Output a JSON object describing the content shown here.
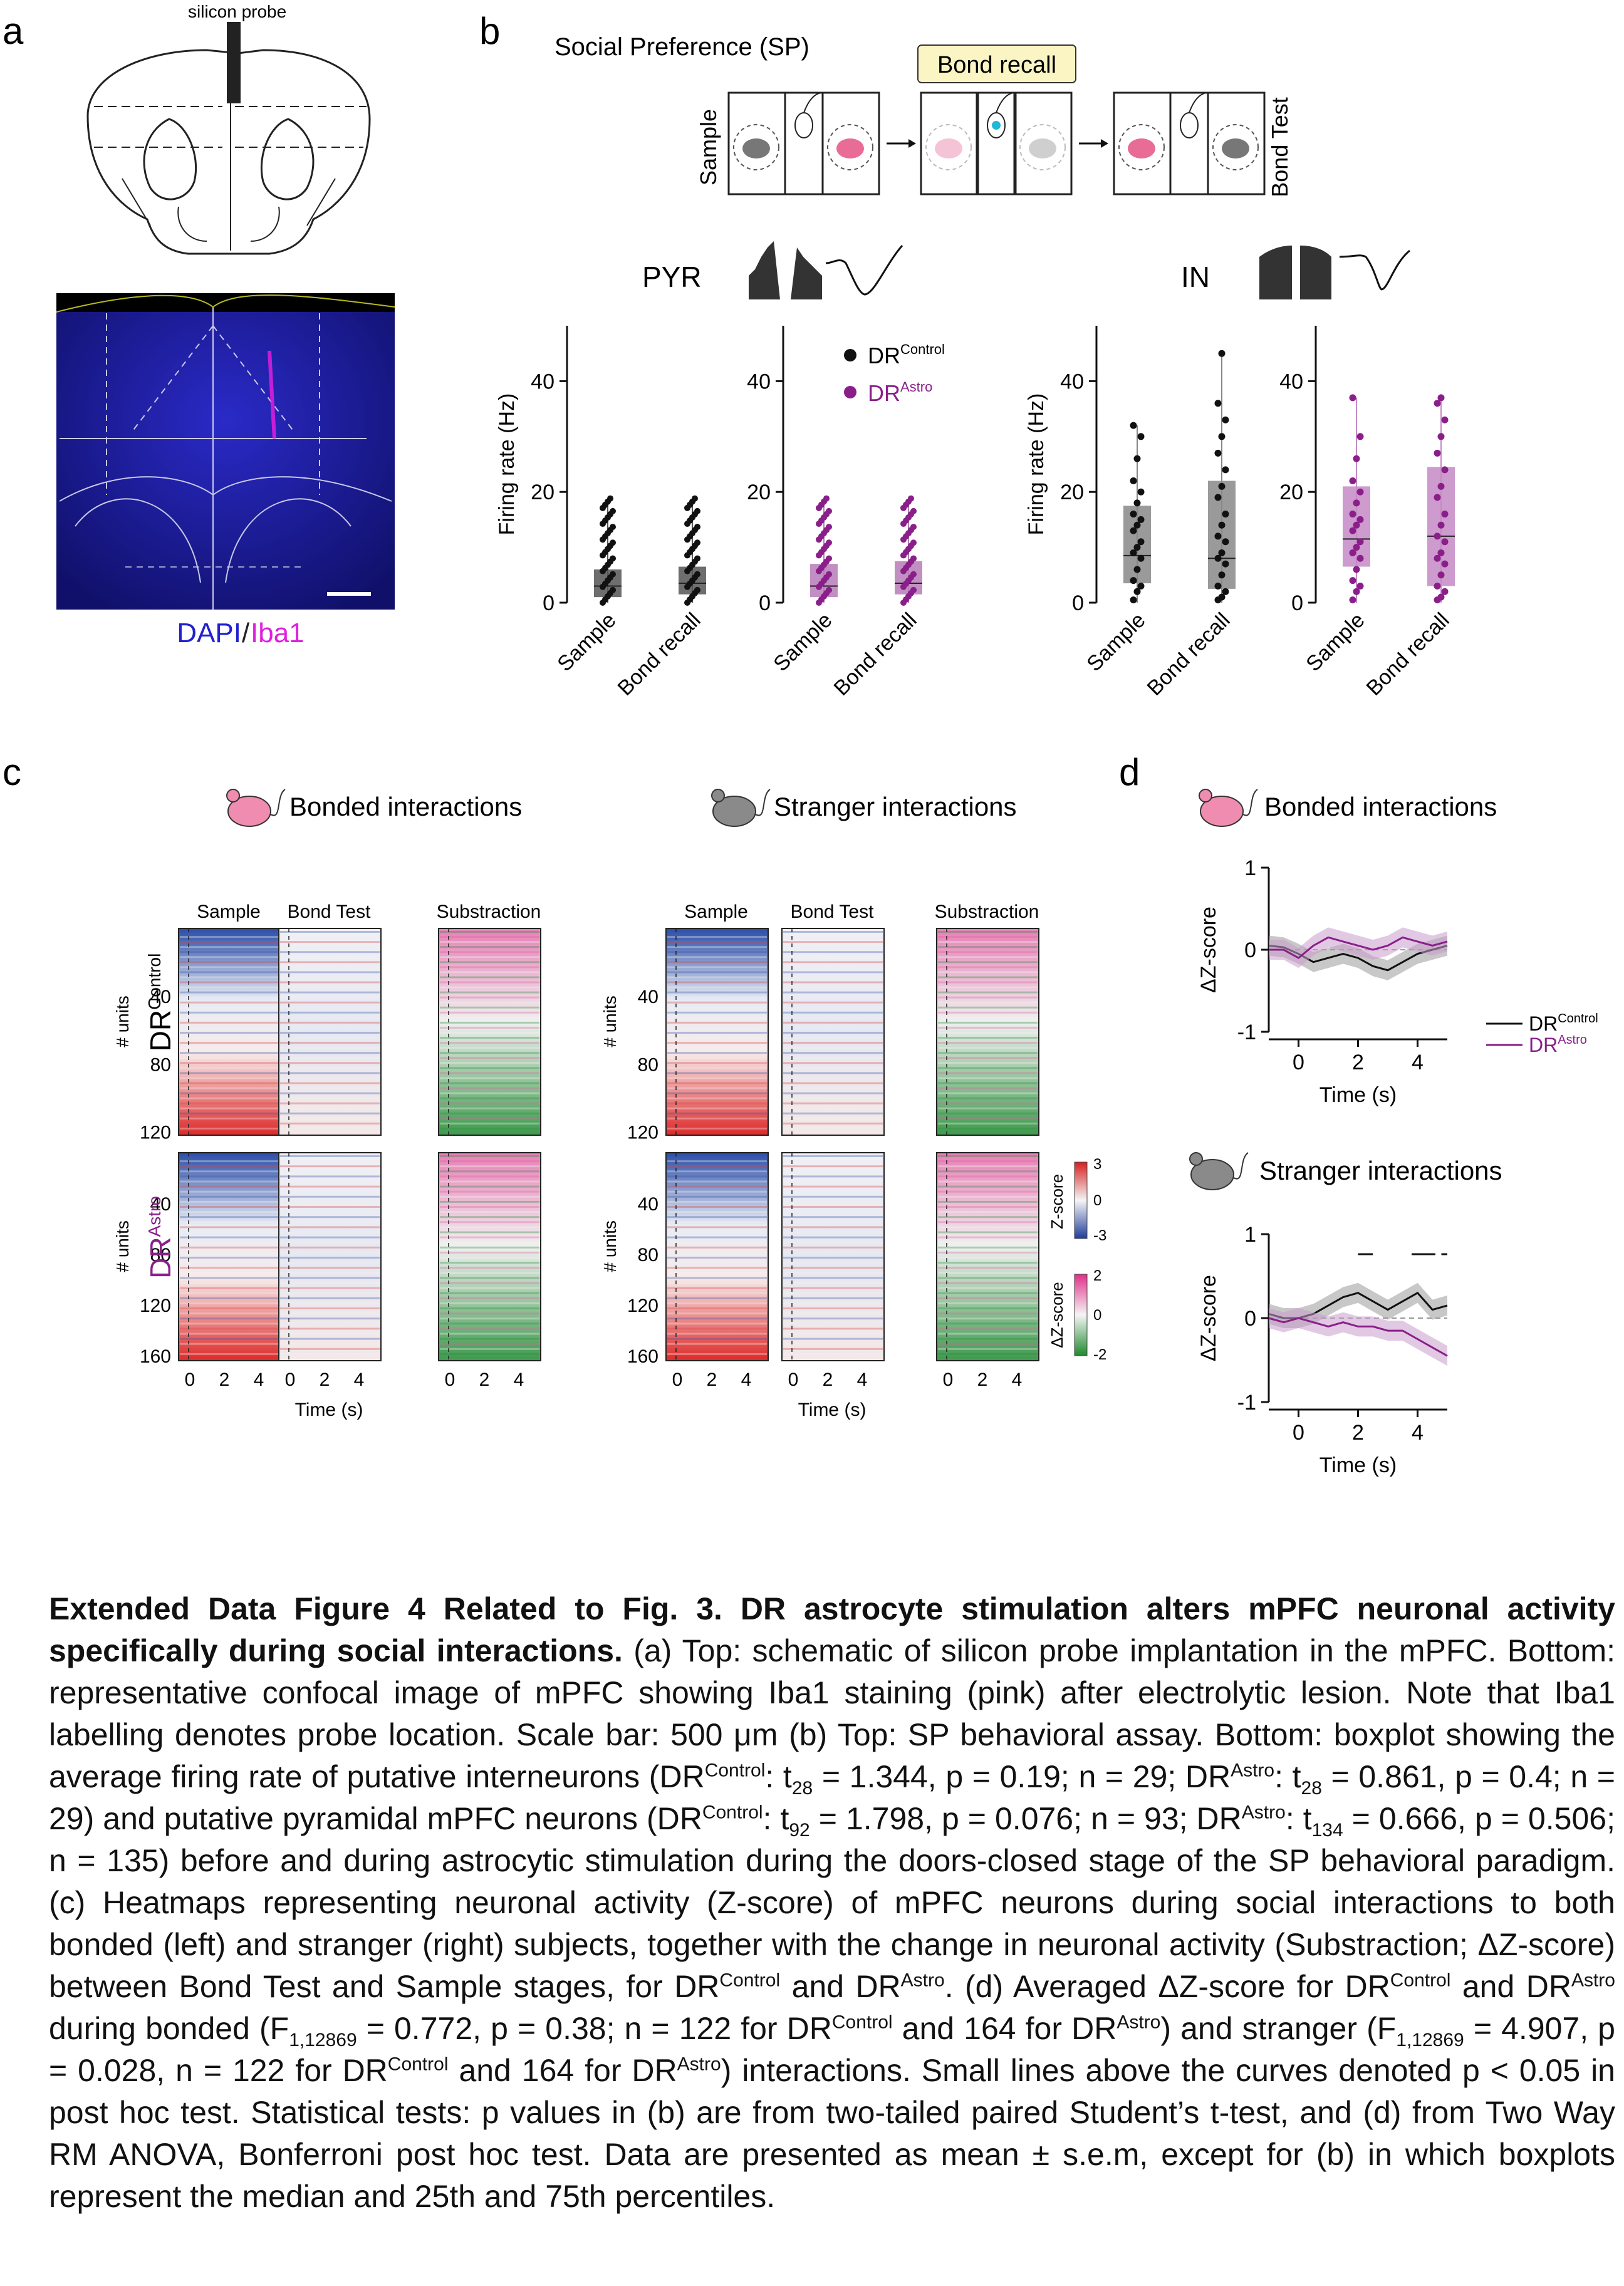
{
  "panels": {
    "a": {
      "letter": "a",
      "probe_label": "silicon probe",
      "stain_dapi": "DAPI",
      "stain_sep": "/",
      "stain_iba1": "Iba1"
    },
    "b": {
      "letter": "b",
      "schematic": {
        "title": "Social Preference (SP)",
        "badge": "Bond recall",
        "left_stage": "Sample",
        "right_stage": "Bond Test"
      },
      "pyr_label": "PYR",
      "in_label": "IN",
      "ylabel": "Firing rate (Hz)",
      "yticks": [
        "0",
        "20",
        "40"
      ],
      "xticks": [
        "Sample",
        "Bond recall"
      ],
      "legend": [
        {
          "base": "DR",
          "sup": "Control",
          "color": "#111111"
        },
        {
          "base": "DR",
          "sup": "Astro",
          "color": "#8a1f8a"
        }
      ]
    },
    "c": {
      "letter": "c",
      "bonded_title": "Bonded interactions",
      "stranger_title": "Stranger interactions",
      "col_titles": [
        "Sample",
        "Bond Test",
        "Substraction"
      ],
      "row_control": {
        "base": "DR",
        "sup": "Control"
      },
      "row_astro": {
        "base": "DR",
        "sup": "Astro"
      },
      "units_label": "# units",
      "control_yticks": [
        "40",
        "80",
        "120"
      ],
      "astro_yticks": [
        "40",
        "80",
        "120",
        "160"
      ],
      "xticks": [
        "0",
        "2",
        "4"
      ],
      "xlabel": "Time (s)",
      "zscale": {
        "label": "Z-score",
        "ticks": [
          "3",
          "0",
          "-3"
        ]
      },
      "dzscale": {
        "label": "ΔZ-score",
        "ticks": [
          "2",
          "0",
          "-2"
        ]
      }
    },
    "d": {
      "letter": "d",
      "bonded_title": "Bonded interactions",
      "stranger_title": "Stranger interactions",
      "ylabel": "ΔZ-score",
      "yticks": [
        "1",
        "0",
        "-1"
      ],
      "xticks": [
        "0",
        "2",
        "4"
      ],
      "xlabel": "Time (s)",
      "legend": [
        {
          "base": "DR",
          "sup": "Control",
          "color": "#111111"
        },
        {
          "base": "DR",
          "sup": "Astro",
          "color": "#8a1f8a"
        }
      ]
    }
  },
  "chart_data": [
    {
      "type": "box",
      "panel": "b-PYR-Control",
      "categories": [
        "Sample",
        "Bond recall"
      ],
      "ylabel": "Firing rate (Hz)",
      "ylim": [
        0,
        50
      ],
      "boxes": [
        {
          "q1": 1.0,
          "median": 3.0,
          "q3": 6.0,
          "min": 0,
          "max": 18
        },
        {
          "q1": 1.5,
          "median": 3.5,
          "q3": 6.5,
          "min": 0,
          "max": 18
        }
      ],
      "color": "#555555"
    },
    {
      "type": "box",
      "panel": "b-PYR-Astro",
      "categories": [
        "Sample",
        "Bond recall"
      ],
      "ylim": [
        0,
        50
      ],
      "boxes": [
        {
          "q1": 1.0,
          "median": 3.0,
          "q3": 7.0,
          "min": 0,
          "max": 18
        },
        {
          "q1": 1.5,
          "median": 3.5,
          "q3": 7.5,
          "min": 0,
          "max": 18
        }
      ],
      "color": "#b77bb7"
    },
    {
      "type": "box",
      "panel": "b-IN-Control",
      "categories": [
        "Sample",
        "Bond recall"
      ],
      "ylabel": "Firing rate (Hz)",
      "ylim": [
        0,
        50
      ],
      "boxes": [
        {
          "q1": 3.5,
          "median": 8.5,
          "q3": 17.5,
          "min": 0,
          "max": 32
        },
        {
          "q1": 2.5,
          "median": 8.0,
          "q3": 22.0,
          "min": 0,
          "max": 45
        }
      ],
      "color": "#888888"
    },
    {
      "type": "box",
      "panel": "b-IN-Astro",
      "categories": [
        "Sample",
        "Bond recall"
      ],
      "ylim": [
        0,
        50
      ],
      "boxes": [
        {
          "q1": 6.5,
          "median": 11.5,
          "q3": 21.0,
          "min": 0,
          "max": 37
        },
        {
          "q1": 3.0,
          "median": 12.0,
          "q3": 24.5,
          "min": 0,
          "max": 37
        }
      ],
      "color": "#c48ac4"
    },
    {
      "type": "line",
      "panel": "d-bonded",
      "ylabel": "ΔZ-score",
      "xlabel": "Time (s)",
      "ylim": [
        -1,
        1
      ],
      "x": [
        -1,
        -0.5,
        0,
        0.5,
        1,
        1.5,
        2,
        2.5,
        3,
        3.5,
        4,
        4.5,
        5
      ],
      "series": [
        {
          "name": "DRControl",
          "color": "#111111",
          "values": [
            0.05,
            0.03,
            -0.05,
            -0.15,
            -0.1,
            -0.05,
            -0.1,
            -0.2,
            -0.25,
            -0.15,
            -0.05,
            0.0,
            0.05
          ]
        },
        {
          "name": "DRAstro",
          "color": "#8a1f8a",
          "values": [
            0.0,
            0.0,
            -0.1,
            0.05,
            0.15,
            0.1,
            0.05,
            0.0,
            0.05,
            0.15,
            0.1,
            0.05,
            0.1
          ]
        }
      ]
    },
    {
      "type": "line",
      "panel": "d-stranger",
      "ylabel": "ΔZ-score",
      "xlabel": "Time (s)",
      "ylim": [
        -1,
        1
      ],
      "x": [
        -1,
        -0.5,
        0,
        0.5,
        1,
        1.5,
        2,
        2.5,
        3,
        3.5,
        4,
        4.5,
        5
      ],
      "series": [
        {
          "name": "DRControl",
          "color": "#111111",
          "values": [
            0.05,
            0.0,
            0.0,
            0.05,
            0.15,
            0.25,
            0.3,
            0.2,
            0.1,
            0.2,
            0.3,
            0.1,
            0.15
          ]
        },
        {
          "name": "DRAstro",
          "color": "#8a1f8a",
          "values": [
            0.0,
            -0.05,
            0.0,
            -0.05,
            -0.1,
            -0.05,
            -0.1,
            -0.1,
            -0.15,
            -0.15,
            -0.25,
            -0.35,
            -0.45
          ]
        }
      ],
      "significance_bars_x": [
        [
          2,
          2.5
        ],
        [
          3.8,
          4.6
        ],
        [
          4.8,
          5.0
        ]
      ]
    }
  ],
  "caption": {
    "title": "Extended Data Figure 4 Related to Fig. 3. DR astrocyte stimulation alters mPFC neuronal activity specifically during social interactions.",
    "segments": [
      " (a) Top: schematic of silicon probe implantation in the mPFC. Bottom: representative confocal image of mPFC showing Iba1 staining (pink) after electrolytic lesion. Note that Iba1 labelling denotes probe location. Scale bar: 500 μm (b) Top: SP behavioral assay. Bottom: boxplot showing the average firing rate of putative interneurons (DR",
      "Control",
      ": t",
      "28",
      " = 1.344, p = 0.19; n = 29; DR",
      "Astro",
      ": t",
      "28",
      " = 0.861, p = 0.4; n = 29) and putative pyramidal mPFC neurons (DR",
      "Control",
      ": t",
      "92",
      " = 1.798, p = 0.076; n = 93; DR",
      "Astro",
      ": t",
      "134",
      " = 0.666, p = 0.506; n = 135) before and during astrocytic stimulation during the doors-closed stage of the SP behavioral paradigm. (c) Heatmaps representing neuronal activity (Z-score) of mPFC neurons during social interactions to both bonded (left) and stranger (right) subjects, together with the change in neuronal activity (Substraction; ΔZ-score) between Bond Test and Sample stages, for DR",
      "Control",
      " and DR",
      "Astro",
      ". (d) Averaged ΔZ-score for DR",
      "Control",
      " and DR",
      "Astro",
      " during bonded (F",
      "1,12869",
      " = 0.772,  p = 0.38; n = 122 for DR",
      "Control",
      " and 164 for DR",
      "Astro",
      ") and stranger (F",
      "1,12869",
      " = 4.907,  p = 0.028, n = 122 for DR",
      "Control",
      " and 164 for DR",
      "Astro",
      ") interactions. Small lines above the curves denoted p < 0.05 in post hoc test. Statistical tests: p values in (b) are from two-tailed paired Student’s t-test, and (d) from Two Way RM ANOVA, Bonferroni post hoc test. Data are presented as mean ± s.e.m, except for (b) in which boxplots represent the median and 25th and 75th percentiles."
    ],
    "segment_kinds": [
      "t",
      "sup",
      "t",
      "sub",
      "t",
      "sup",
      "t",
      "sub",
      "t",
      "sup",
      "t",
      "sub",
      "t",
      "sup",
      "t",
      "sub",
      "t",
      "sup",
      "t",
      "sup",
      "t",
      "sup",
      "t",
      "sup",
      "t",
      "sub",
      "t",
      "sup",
      "t",
      "sup",
      "t",
      "sub",
      "t",
      "sup",
      "t",
      "sup",
      "t"
    ]
  }
}
